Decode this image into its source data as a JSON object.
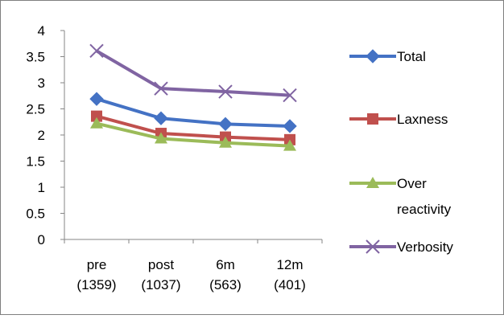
{
  "chart_data": {
    "type": "line",
    "categories": [
      "pre\n(1359)",
      "post\n(1037)",
      "6m\n(563)",
      "12m\n(401)"
    ],
    "ylim": [
      0,
      4
    ],
    "yticks": [
      "0",
      "0.5",
      "1",
      "1.5",
      "2",
      "2.5",
      "3",
      "3.5",
      "4"
    ],
    "grid": false,
    "legend_position": "right",
    "series": [
      {
        "name": "Total",
        "color": "#4472C4",
        "marker": "diamond",
        "values": [
          2.69,
          2.32,
          2.21,
          2.17
        ]
      },
      {
        "name": "Laxness",
        "color": "#C0504D",
        "marker": "square",
        "values": [
          2.36,
          2.03,
          1.96,
          1.91
        ]
      },
      {
        "name": "Over reactivity",
        "color": "#9BBB59",
        "marker": "triangle",
        "values": [
          2.22,
          1.93,
          1.85,
          1.79
        ]
      },
      {
        "name": "Verbosity",
        "color": "#8064A2",
        "marker": "x",
        "values": [
          3.61,
          2.89,
          2.83,
          2.76
        ]
      }
    ]
  }
}
